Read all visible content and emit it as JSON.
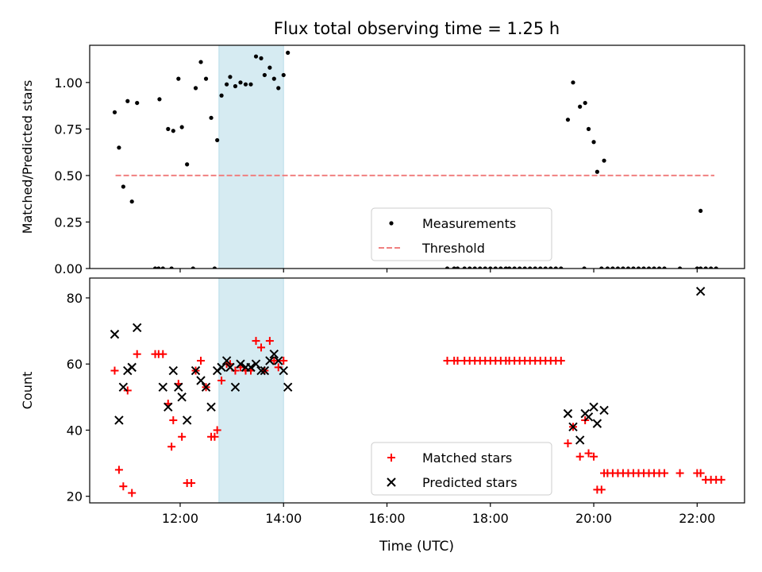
{
  "figure": {
    "title": "Flux total observing time = 1.25 h",
    "xlabel": "Time (UTC)"
  },
  "chart_data": [
    {
      "type": "scatter",
      "panel": "top",
      "title": "Flux total observing time = 1.25 h",
      "xlabel": "",
      "ylabel": "Matched/Predicted stars",
      "xlim": [
        "10:15",
        "22:55"
      ],
      "ylim": [
        0.0,
        1.2
      ],
      "yticks": [
        0.0,
        0.25,
        0.5,
        0.75,
        1.0
      ],
      "ytick_labels": [
        "0.00",
        "0.25",
        "0.50",
        "0.75",
        "1.00"
      ],
      "xticks": [
        "12:00",
        "14:00",
        "16:00",
        "18:00",
        "20:00",
        "22:00"
      ],
      "show_xtick_labels": false,
      "grid": false,
      "shaded_interval": {
        "start": "12:45",
        "end": "14:00",
        "color": "#add8e6"
      },
      "legend": {
        "position": "lower-center",
        "entries": [
          "Measurements",
          "Threshold"
        ]
      },
      "threshold": {
        "name": "Threshold",
        "y": 0.5,
        "x_start": "10:45",
        "x_end": "22:20",
        "color": "#f08080",
        "style": "dashed"
      },
      "series": [
        {
          "name": "Measurements",
          "color": "#000000",
          "marker": "dot",
          "points": [
            [
              "10:44",
              0.84
            ],
            [
              "10:49",
              0.65
            ],
            [
              "10:54",
              0.44
            ],
            [
              "10:59",
              0.9
            ],
            [
              "11:04",
              0.36
            ],
            [
              "11:10",
              0.89
            ],
            [
              "11:36",
              0.91
            ],
            [
              "11:46",
              0.75
            ],
            [
              "11:52",
              0.74
            ],
            [
              "11:58",
              1.02
            ],
            [
              "12:02",
              0.76
            ],
            [
              "12:08",
              0.56
            ],
            [
              "12:18",
              0.97
            ],
            [
              "12:24",
              1.11
            ],
            [
              "12:30",
              1.02
            ],
            [
              "12:36",
              0.81
            ],
            [
              "12:43",
              0.69
            ],
            [
              "12:48",
              0.93
            ],
            [
              "12:54",
              0.99
            ],
            [
              "12:58",
              1.03
            ],
            [
              "13:04",
              0.98
            ],
            [
              "13:10",
              1.0
            ],
            [
              "13:16",
              0.99
            ],
            [
              "13:22",
              0.99
            ],
            [
              "13:28",
              1.14
            ],
            [
              "13:34",
              1.13
            ],
            [
              "13:38",
              1.04
            ],
            [
              "13:44",
              1.08
            ],
            [
              "13:49",
              1.02
            ],
            [
              "13:54",
              0.97
            ],
            [
              "14:00",
              1.04
            ],
            [
              "14:05",
              1.16
            ],
            [
              "11:31",
              0.0
            ],
            [
              "11:35",
              0.0
            ],
            [
              "11:40",
              0.0
            ],
            [
              "11:50",
              0.0
            ],
            [
              "12:15",
              0.0
            ],
            [
              "12:40",
              0.0
            ],
            [
              "17:10",
              0.0
            ],
            [
              "17:18",
              0.0
            ],
            [
              "17:22",
              0.0
            ],
            [
              "17:30",
              0.0
            ],
            [
              "17:36",
              0.0
            ],
            [
              "17:42",
              0.0
            ],
            [
              "17:48",
              0.0
            ],
            [
              "17:54",
              0.0
            ],
            [
              "18:00",
              0.0
            ],
            [
              "18:06",
              0.0
            ],
            [
              "18:12",
              0.0
            ],
            [
              "18:18",
              0.0
            ],
            [
              "18:22",
              0.0
            ],
            [
              "18:28",
              0.0
            ],
            [
              "18:34",
              0.0
            ],
            [
              "18:40",
              0.0
            ],
            [
              "18:46",
              0.0
            ],
            [
              "18:52",
              0.0
            ],
            [
              "18:58",
              0.0
            ],
            [
              "19:04",
              0.0
            ],
            [
              "19:10",
              0.0
            ],
            [
              "19:16",
              0.0
            ],
            [
              "19:22",
              0.0
            ],
            [
              "19:49",
              0.0
            ],
            [
              "19:30",
              0.8
            ],
            [
              "19:36",
              1.0
            ],
            [
              "19:44",
              0.87
            ],
            [
              "19:50",
              0.89
            ],
            [
              "19:54",
              0.75
            ],
            [
              "20:00",
              0.68
            ],
            [
              "20:04",
              0.52
            ],
            [
              "20:12",
              0.58
            ],
            [
              "20:09",
              0.0
            ],
            [
              "20:16",
              0.0
            ],
            [
              "20:22",
              0.0
            ],
            [
              "20:28",
              0.0
            ],
            [
              "20:34",
              0.0
            ],
            [
              "20:40",
              0.0
            ],
            [
              "20:46",
              0.0
            ],
            [
              "20:52",
              0.0
            ],
            [
              "20:58",
              0.0
            ],
            [
              "21:04",
              0.0
            ],
            [
              "21:10",
              0.0
            ],
            [
              "21:16",
              0.0
            ],
            [
              "21:22",
              0.0
            ],
            [
              "21:40",
              0.0
            ],
            [
              "22:00",
              0.0
            ],
            [
              "22:04",
              0.0
            ],
            [
              "22:10",
              0.0
            ],
            [
              "22:16",
              0.0
            ],
            [
              "22:22",
              0.0
            ],
            [
              "22:04",
              0.31
            ]
          ]
        }
      ]
    },
    {
      "type": "scatter",
      "panel": "bottom",
      "xlabel": "Time (UTC)",
      "ylabel": "Count",
      "xlim": [
        "10:15",
        "22:55"
      ],
      "ylim": [
        18,
        86
      ],
      "yticks": [
        20,
        40,
        60,
        80
      ],
      "ytick_labels": [
        "20",
        "40",
        "60",
        "80"
      ],
      "xticks": [
        "12:00",
        "14:00",
        "16:00",
        "18:00",
        "20:00",
        "22:00"
      ],
      "xtick_labels": [
        "12:00",
        "14:00",
        "16:00",
        "18:00",
        "20:00",
        "22:00"
      ],
      "grid": false,
      "shaded_interval": {
        "start": "12:45",
        "end": "14:00",
        "color": "#add8e6"
      },
      "legend": {
        "position": "lower-center",
        "entries": [
          "Matched stars",
          "Predicted stars"
        ]
      },
      "series": [
        {
          "name": "Matched stars",
          "color": "#ff0000",
          "marker": "plus",
          "points": [
            [
              "10:44",
              58
            ],
            [
              "10:49",
              28
            ],
            [
              "10:54",
              23
            ],
            [
              "10:59",
              52
            ],
            [
              "11:04",
              21
            ],
            [
              "11:10",
              63
            ],
            [
              "11:31",
              63
            ],
            [
              "11:35",
              63
            ],
            [
              "11:40",
              63
            ],
            [
              "11:46",
              48
            ],
            [
              "11:50",
              35
            ],
            [
              "11:52",
              43
            ],
            [
              "11:58",
              54
            ],
            [
              "12:02",
              38
            ],
            [
              "12:08",
              24
            ],
            [
              "12:13",
              24
            ],
            [
              "12:18",
              58
            ],
            [
              "12:24",
              61
            ],
            [
              "12:30",
              53
            ],
            [
              "12:36",
              38
            ],
            [
              "12:40",
              38
            ],
            [
              "12:43",
              40
            ],
            [
              "12:48",
              55
            ],
            [
              "12:54",
              60
            ],
            [
              "12:58",
              60
            ],
            [
              "13:04",
              58
            ],
            [
              "13:10",
              59
            ],
            [
              "13:16",
              58
            ],
            [
              "13:22",
              58
            ],
            [
              "13:28",
              67
            ],
            [
              "13:34",
              65
            ],
            [
              "13:38",
              58
            ],
            [
              "13:44",
              67
            ],
            [
              "13:49",
              61
            ],
            [
              "13:54",
              59
            ],
            [
              "14:00",
              61
            ],
            [
              "17:10",
              61
            ],
            [
              "17:18",
              61
            ],
            [
              "17:22",
              61
            ],
            [
              "17:30",
              61
            ],
            [
              "17:36",
              61
            ],
            [
              "17:42",
              61
            ],
            [
              "17:48",
              61
            ],
            [
              "17:54",
              61
            ],
            [
              "18:00",
              61
            ],
            [
              "18:06",
              61
            ],
            [
              "18:12",
              61
            ],
            [
              "18:18",
              61
            ],
            [
              "18:22",
              61
            ],
            [
              "18:28",
              61
            ],
            [
              "18:34",
              61
            ],
            [
              "18:40",
              61
            ],
            [
              "18:46",
              61
            ],
            [
              "18:52",
              61
            ],
            [
              "18:58",
              61
            ],
            [
              "19:04",
              61
            ],
            [
              "19:10",
              61
            ],
            [
              "19:16",
              61
            ],
            [
              "19:22",
              61
            ],
            [
              "19:30",
              36
            ],
            [
              "19:36",
              41
            ],
            [
              "19:44",
              32
            ],
            [
              "19:50",
              43
            ],
            [
              "19:54",
              33
            ],
            [
              "20:00",
              32
            ],
            [
              "20:04",
              22
            ],
            [
              "20:09",
              22
            ],
            [
              "20:12",
              27
            ],
            [
              "20:16",
              27
            ],
            [
              "20:22",
              27
            ],
            [
              "20:28",
              27
            ],
            [
              "20:34",
              27
            ],
            [
              "20:40",
              27
            ],
            [
              "20:46",
              27
            ],
            [
              "20:52",
              27
            ],
            [
              "20:58",
              27
            ],
            [
              "21:04",
              27
            ],
            [
              "21:10",
              27
            ],
            [
              "21:16",
              27
            ],
            [
              "21:22",
              27
            ],
            [
              "21:40",
              27
            ],
            [
              "22:00",
              27
            ],
            [
              "22:04",
              27
            ],
            [
              "22:10",
              25
            ],
            [
              "22:16",
              25
            ],
            [
              "22:22",
              25
            ],
            [
              "22:28",
              25
            ]
          ]
        },
        {
          "name": "Predicted stars",
          "color": "#000000",
          "marker": "x",
          "points": [
            [
              "10:44",
              69
            ],
            [
              "10:49",
              43
            ],
            [
              "10:54",
              53
            ],
            [
              "10:59",
              58
            ],
            [
              "11:04",
              59
            ],
            [
              "11:10",
              71
            ],
            [
              "11:40",
              53
            ],
            [
              "11:46",
              47
            ],
            [
              "11:52",
              58
            ],
            [
              "11:58",
              53
            ],
            [
              "12:02",
              50
            ],
            [
              "12:08",
              43
            ],
            [
              "12:18",
              58
            ],
            [
              "12:24",
              55
            ],
            [
              "12:30",
              53
            ],
            [
              "12:36",
              47
            ],
            [
              "12:43",
              58
            ],
            [
              "12:48",
              59
            ],
            [
              "12:54",
              61
            ],
            [
              "12:58",
              59
            ],
            [
              "13:04",
              53
            ],
            [
              "13:10",
              60
            ],
            [
              "13:16",
              59
            ],
            [
              "13:22",
              59
            ],
            [
              "13:28",
              60
            ],
            [
              "13:34",
              58
            ],
            [
              "13:38",
              58
            ],
            [
              "13:44",
              61
            ],
            [
              "13:49",
              63
            ],
            [
              "13:54",
              61
            ],
            [
              "14:00",
              58
            ],
            [
              "14:05",
              53
            ],
            [
              "19:30",
              45
            ],
            [
              "19:36",
              41
            ],
            [
              "19:44",
              37
            ],
            [
              "19:50",
              45
            ],
            [
              "19:54",
              44
            ],
            [
              "20:00",
              47
            ],
            [
              "20:04",
              42
            ],
            [
              "20:12",
              46
            ],
            [
              "22:04",
              82
            ]
          ]
        }
      ]
    }
  ]
}
